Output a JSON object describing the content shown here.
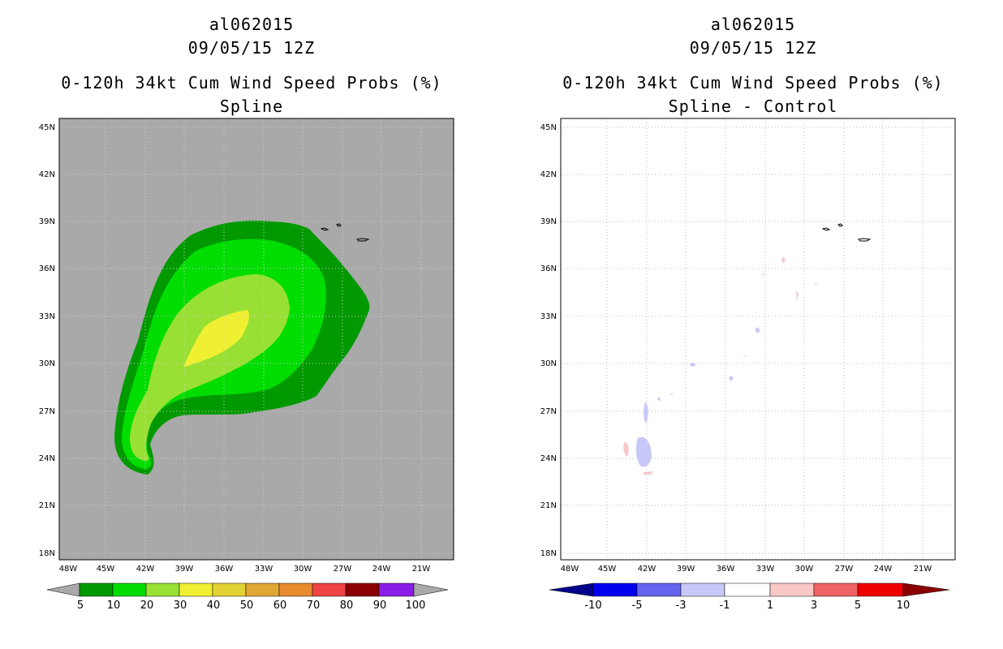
{
  "panels": [
    {
      "title_lines": [
        "al062015",
        "09/05/15 12Z",
        "0-120h 34kt Cum Wind Speed Probs (%)",
        "Spline"
      ],
      "colorbar": {
        "labels": [
          "5",
          "10",
          "20",
          "30",
          "40",
          "50",
          "60",
          "70",
          "80",
          "90",
          "100"
        ],
        "colors": [
          "#009900",
          "#00dd00",
          "#99e034",
          "#f0f033",
          "#e3d234",
          "#e0a734",
          "#e88a2e",
          "#ee4444",
          "#8b0000",
          "#8a1de6"
        ],
        "under_color": "#a9a9a9",
        "over_color": "#a9a9a9"
      },
      "background_color": "#a9a9a9"
    },
    {
      "title_lines": [
        "al062015",
        "09/05/15 12Z",
        "0-120h 34kt Cum Wind Speed Probs (%)",
        "Spline - Control"
      ],
      "colorbar": {
        "labels": [
          "-10",
          "-5",
          "-3",
          "-1",
          "1",
          "3",
          "5",
          "10"
        ],
        "colors": [
          "#0000ee",
          "#6464ee",
          "#c8c8f8",
          "#ffffff",
          "#f8c8c8",
          "#ee6464",
          "#ee0000"
        ],
        "under_color": "#00008b",
        "over_color": "#8b0000"
      },
      "background_color": "#ffffff"
    }
  ],
  "map": {
    "lat_labels": [
      "45N",
      "42N",
      "39N",
      "36N",
      "33N",
      "30N",
      "27N",
      "24N",
      "21N",
      "18N"
    ],
    "lon_labels": [
      "48W",
      "45W",
      "42W",
      "39W",
      "36W",
      "33W",
      "30W",
      "27W",
      "24W",
      "21W"
    ]
  }
}
